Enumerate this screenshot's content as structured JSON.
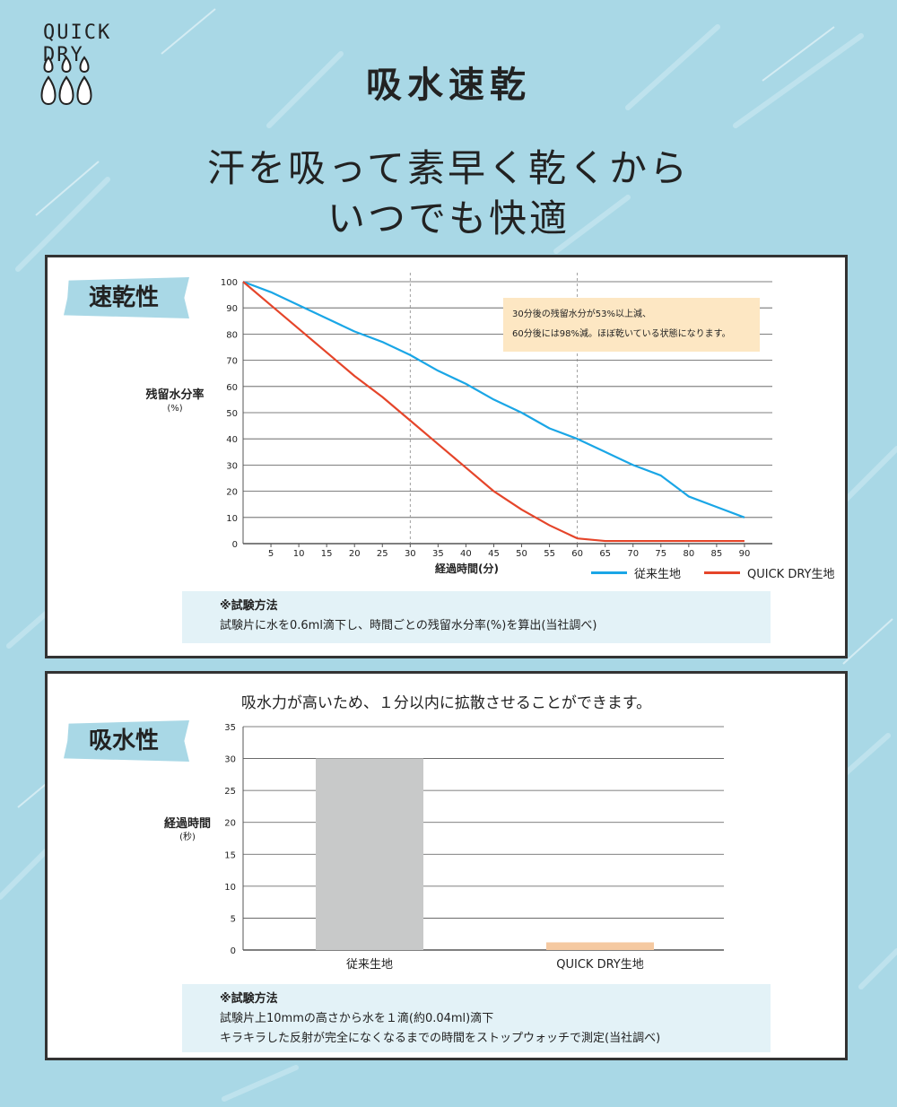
{
  "logo": {
    "text": "QUICK DRY"
  },
  "title": "吸水速乾",
  "headline": {
    "line1": "汗を吸って素早く乾くから",
    "line2": "いつでも快適"
  },
  "colors": {
    "background": "#a9d8e6",
    "conventional": "#1aa6e6",
    "quickdry": "#e5452a",
    "bar_conventional": "#c8c9c9",
    "bar_quickdry": "#f5c9a1",
    "callout": "#fde7c3",
    "note": "#e3f2f7"
  },
  "panel1": {
    "badge": "速乾性",
    "ylabel": "残留水分率",
    "yunit": "(%)",
    "xlabel": "経過時間(分)",
    "callout_line1": "30分後の残留水分が53%以上減、",
    "callout_line2": "60分後には98%減。ほぼ乾いている状態になります。",
    "legend_conventional": "従来生地",
    "legend_quickdry": "QUICK DRY生地",
    "note_title": "※試験方法",
    "note_line1": "試験片に水を0.6ml滴下し、時間ごとの残留水分率(%)を算出(当社調べ)"
  },
  "panel2": {
    "badge": "吸水性",
    "subtitle": "吸水力が高いため、１分以内に拡散させることができます。",
    "ylabel": "経過時間",
    "yunit": "(秒)",
    "note_title": "※試験方法",
    "note_line1": "試験片上10mmの高さから水を１滴(約0.04ml)滴下",
    "note_line2": "キラキラした反射が完全になくなるまでの時間をストップウォッチで測定(当社調べ)"
  },
  "chart_data": [
    {
      "type": "line",
      "x": [
        0,
        5,
        10,
        15,
        20,
        25,
        30,
        35,
        40,
        45,
        50,
        55,
        60,
        65,
        70,
        75,
        80,
        85,
        90
      ],
      "xticks": [
        5,
        10,
        15,
        20,
        25,
        30,
        35,
        40,
        45,
        50,
        55,
        60,
        65,
        70,
        75,
        80,
        85,
        90
      ],
      "yticks": [
        0,
        10,
        20,
        30,
        40,
        50,
        60,
        70,
        80,
        90,
        100
      ],
      "xlim": [
        0,
        95
      ],
      "ylim": [
        0,
        100
      ],
      "reference_lines_x": [
        30,
        60
      ],
      "series": [
        {
          "name": "従来生地",
          "values": [
            100,
            96,
            91,
            86,
            81,
            77,
            72,
            66,
            61,
            55,
            50,
            44,
            40,
            35,
            30,
            26,
            18,
            14,
            10
          ]
        },
        {
          "name": "QUICK DRY生地",
          "values": [
            100,
            91,
            82,
            73,
            64,
            56,
            47,
            38,
            29,
            20,
            13,
            7,
            2,
            1,
            1,
            1,
            1,
            1,
            1
          ]
        }
      ]
    },
    {
      "type": "bar",
      "categories": [
        "従来生地",
        "QUICK DRY生地"
      ],
      "values": [
        30,
        1.2
      ],
      "yticks": [
        0,
        5,
        10,
        15,
        20,
        25,
        30,
        35
      ],
      "ylim": [
        0,
        35
      ]
    }
  ]
}
